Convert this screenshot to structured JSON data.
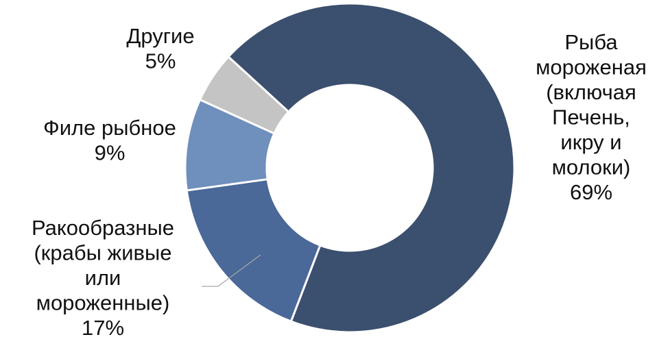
{
  "chart_data": {
    "type": "pie",
    "variant": "donut",
    "legend": "none",
    "slices": [
      {
        "label_lines": [
          "Рыба",
          "мороженая",
          "(включая",
          "Печень,",
          "икру и",
          "молоки)"
        ],
        "percent_label": "69%",
        "value": 69,
        "color": "#3b4f6e"
      },
      {
        "label_lines": [
          "Ракообразные",
          "(крабы живые",
          "или",
          "мороженные)"
        ],
        "percent_label": "17%",
        "value": 17,
        "color": "#4a6898"
      },
      {
        "label_lines": [
          "Филе рыбное"
        ],
        "percent_label": "9%",
        "value": 9,
        "color": "#6f8fbc"
      },
      {
        "label_lines": [
          "Другие"
        ],
        "percent_label": "5%",
        "value": 5,
        "color": "#c4c4c4"
      }
    ]
  }
}
